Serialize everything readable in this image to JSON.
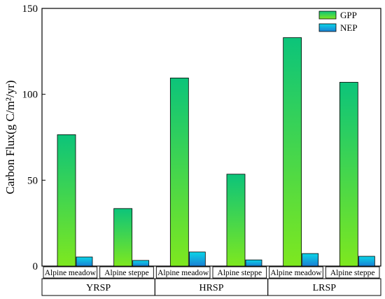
{
  "chart_data": {
    "type": "bar",
    "ylabel": "Carbon Flux(g C/m²/yr)",
    "ylim": [
      0,
      150
    ],
    "yticks": [
      0,
      50,
      100,
      150
    ],
    "groups": [
      {
        "name": "YRSP",
        "categories": [
          {
            "label": "Alpine meadow",
            "GPP": 76.5,
            "NEP": 5.3
          },
          {
            "label": "Alpine steppe",
            "GPP": 33.5,
            "NEP": 3.3
          }
        ]
      },
      {
        "name": "HRSP",
        "categories": [
          {
            "label": "Alpine meadow",
            "GPP": 109.5,
            "NEP": 8.2
          },
          {
            "label": "Alpine steppe",
            "GPP": 53.5,
            "NEP": 3.6
          }
        ]
      },
      {
        "name": "LRSP",
        "categories": [
          {
            "label": "Alpine meadow",
            "GPP": 133.0,
            "NEP": 7.3
          },
          {
            "label": "Alpine steppe",
            "GPP": 107.0,
            "NEP": 5.7
          }
        ]
      }
    ],
    "series": [
      {
        "name": "GPP",
        "key": "GPP",
        "gradient_top": "#0cc47a",
        "gradient_bottom": "#7ee81f"
      },
      {
        "name": "NEP",
        "key": "NEP",
        "gradient_top": "#0ad6e8",
        "gradient_bottom": "#1a7fd4"
      }
    ],
    "legend_position": "top-right",
    "grid": false
  }
}
